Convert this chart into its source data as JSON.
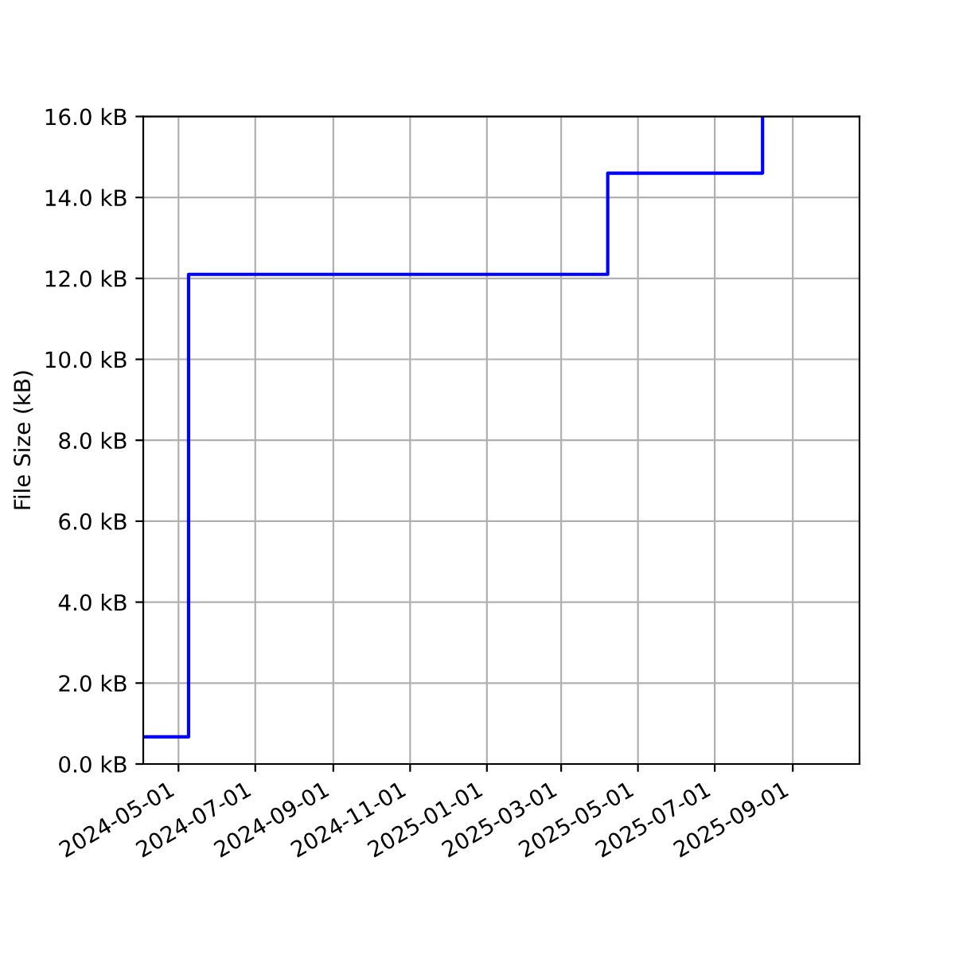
{
  "chart_data": {
    "type": "step",
    "ylabel": "File Size (kB)",
    "series": [
      {
        "color": "#0000ff",
        "x": [
          "2024-04-03",
          "2024-05-09",
          "2025-04-07",
          "2025-08-08"
        ],
        "values": [
          0.67,
          12.1,
          14.6,
          16.0
        ]
      }
    ],
    "xlim": [
      "2024-04-03",
      "2025-10-24"
    ],
    "xticks": [
      "2024-05-01",
      "2024-07-01",
      "2024-09-01",
      "2024-11-01",
      "2025-01-01",
      "2025-03-01",
      "2025-05-01",
      "2025-07-01",
      "2025-09-01"
    ],
    "ylim": [
      0,
      16
    ],
    "yticks": [
      {
        "value": 0,
        "label": "0.0 kB"
      },
      {
        "value": 2,
        "label": "2.0 kB"
      },
      {
        "value": 4,
        "label": "4.0 kB"
      },
      {
        "value": 6,
        "label": "6.0 kB"
      },
      {
        "value": 8,
        "label": "8.0 kB"
      },
      {
        "value": 10,
        "label": "10.0 kB"
      },
      {
        "value": 12,
        "label": "12.0 kB"
      },
      {
        "value": 14,
        "label": "14.0 kB"
      },
      {
        "value": 16,
        "label": "16.0 kB"
      }
    ],
    "grid": true,
    "marker": "none",
    "line_style": "solid"
  }
}
